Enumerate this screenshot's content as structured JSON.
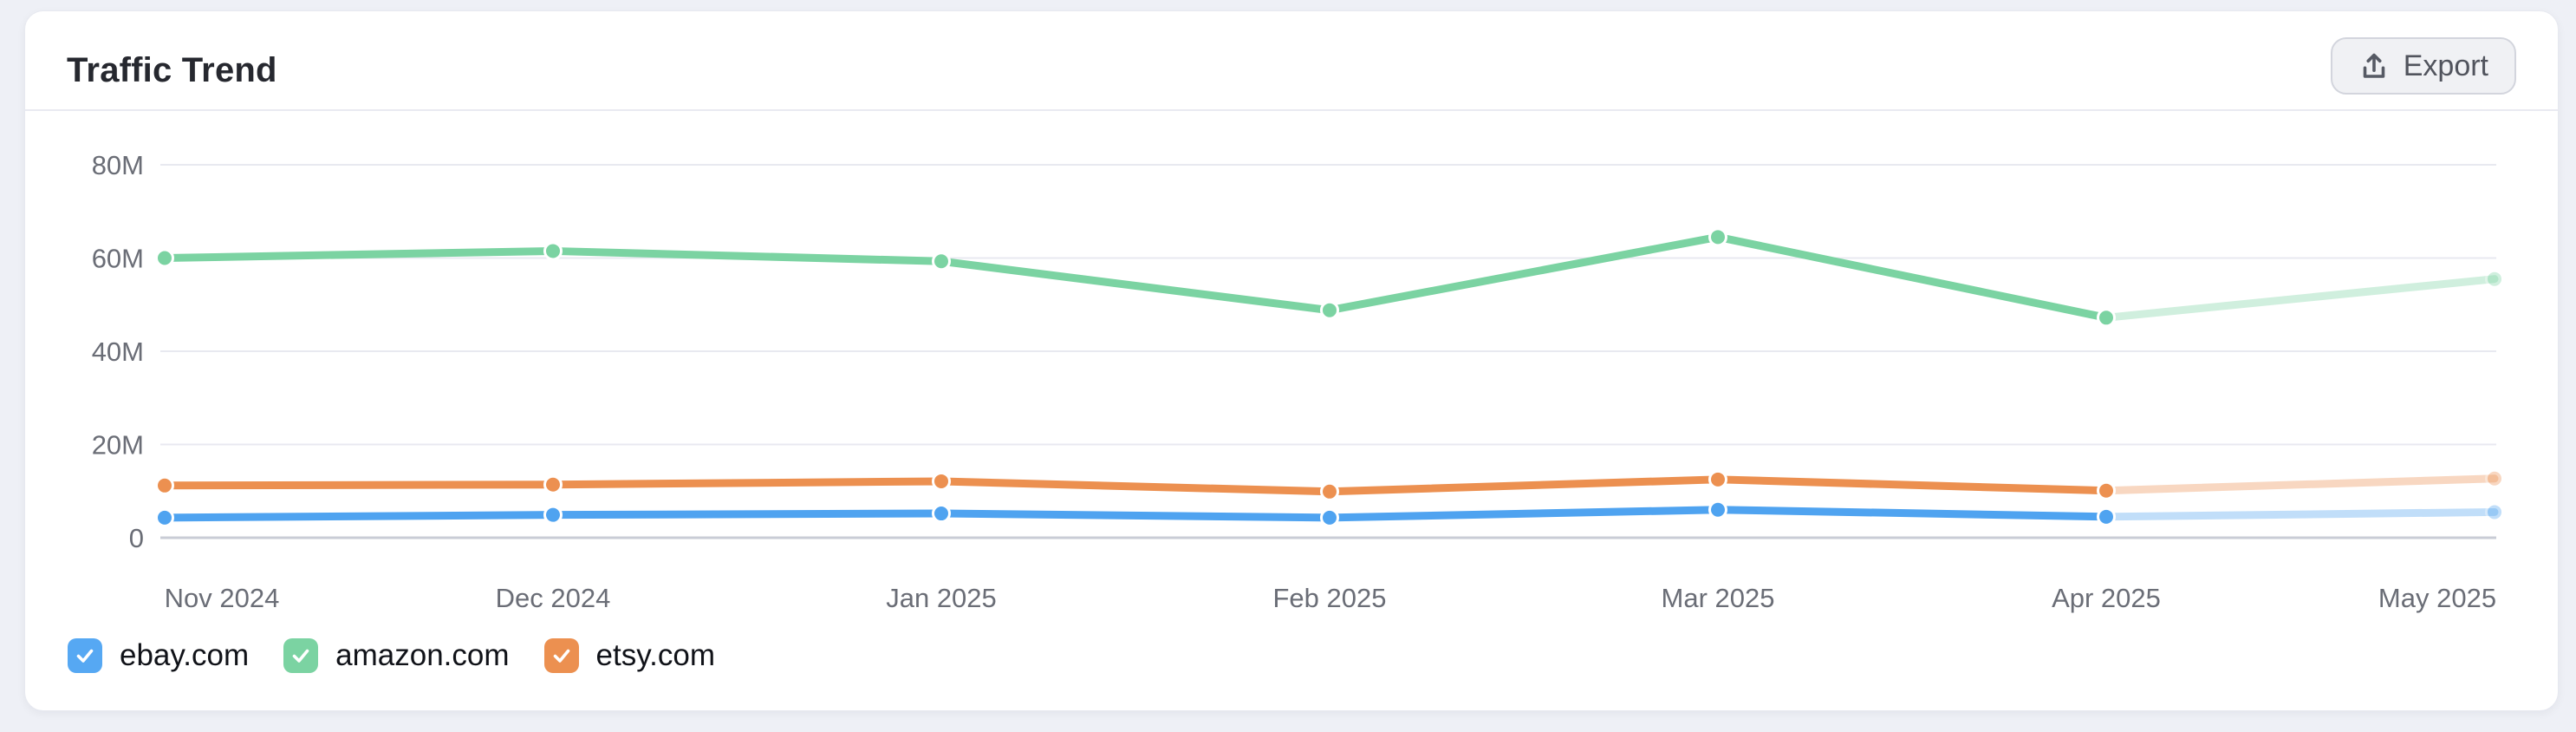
{
  "card": {
    "title": "Traffic Trend",
    "export_label": "Export"
  },
  "colors": {
    "page_bg": "#eef0f6",
    "card_bg": "#ffffff",
    "divider": "#e9eaf1",
    "grid_line": "#e8e9f0",
    "zero_axis_line": "#c9ccd6",
    "tick_text": "#6a6d76",
    "title_text": "#26282f",
    "legend_text": "#101218",
    "export_text": "#51545d",
    "export_bg": "#f0f1f4",
    "export_border": "#d3d5dd",
    "series_blue": "#4FA3F0",
    "series_green": "#7BD3A2",
    "series_orange": "#EC9050"
  },
  "chart_data": {
    "type": "line",
    "title": "Traffic Trend",
    "categories": [
      "Nov 2024",
      "Dec 2024",
      "Jan 2025",
      "Feb 2025",
      "Mar 2025",
      "Apr 2025",
      "May 2025"
    ],
    "y_axis": {
      "unit": "M",
      "range": [
        0,
        80
      ],
      "ticks": [
        {
          "label": "80M",
          "value": 80
        },
        {
          "label": "60M",
          "value": 60
        },
        {
          "label": "40M",
          "value": 40
        },
        {
          "label": "20M",
          "value": 20
        },
        {
          "label": "0",
          "value": 0
        }
      ]
    },
    "grid": "horizontal",
    "legend_position": "bottom-left",
    "last_segment_faded": true,
    "series": [
      {
        "name": "amazon.com",
        "color": "#7BD3A2",
        "values_m": [
          60.0,
          61.5,
          59.3,
          48.8,
          64.5,
          47.2,
          55.5
        ]
      },
      {
        "name": "etsy.com",
        "color": "#EC9050",
        "values_m": [
          11.2,
          11.4,
          12.1,
          9.9,
          12.5,
          10.1,
          12.7
        ]
      },
      {
        "name": "ebay.com",
        "color": "#4FA3F0",
        "values_m": [
          4.3,
          4.9,
          5.2,
          4.3,
          6.0,
          4.5,
          5.5
        ]
      }
    ],
    "legend": [
      {
        "label": "ebay.com",
        "color": "#56A8F3",
        "checked": true
      },
      {
        "label": "amazon.com",
        "color": "#7BD3A2",
        "checked": true
      },
      {
        "label": "etsy.com",
        "color": "#EC9050",
        "checked": true
      }
    ]
  }
}
